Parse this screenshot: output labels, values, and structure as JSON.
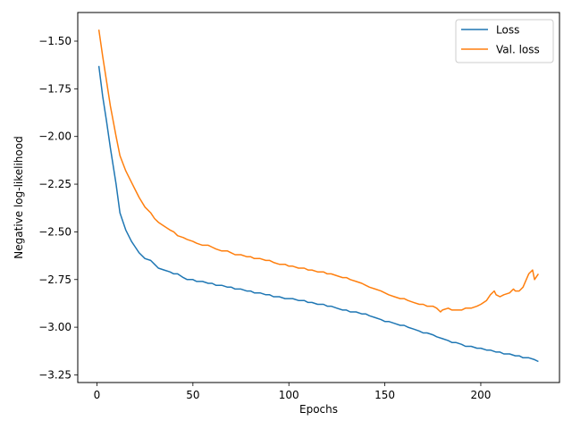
{
  "chart_data": {
    "type": "line",
    "title": "",
    "xlabel": "Epochs",
    "ylabel": "Negative log-likelihood",
    "xlim": [
      -10,
      241
    ],
    "ylim": [
      -3.29,
      -1.35
    ],
    "xticks": [
      0,
      50,
      100,
      150,
      200
    ],
    "yticks": [
      -1.5,
      -1.75,
      -2.0,
      -2.25,
      -2.5,
      -2.75,
      -3.0,
      -3.25
    ],
    "xtick_labels": [
      "0",
      "50",
      "100",
      "150",
      "200"
    ],
    "ytick_labels": [
      "−1.50",
      "−1.75",
      "−2.00",
      "−2.25",
      "−2.50",
      "−2.75",
      "−3.00",
      "−3.25"
    ],
    "grid": false,
    "legend_position": "top-right",
    "series": [
      {
        "name": "Loss",
        "color": "#1f77b4",
        "x": [
          1,
          3,
          5,
          7,
          10,
          12,
          15,
          18,
          20,
          22,
          25,
          28,
          30,
          32,
          35,
          38,
          40,
          42,
          45,
          47,
          50,
          52,
          55,
          58,
          60,
          62,
          65,
          68,
          70,
          72,
          75,
          78,
          80,
          82,
          85,
          88,
          90,
          92,
          95,
          98,
          100,
          102,
          105,
          108,
          110,
          112,
          115,
          118,
          120,
          122,
          125,
          128,
          130,
          132,
          135,
          138,
          140,
          142,
          145,
          148,
          150,
          152,
          155,
          158,
          160,
          162,
          165,
          168,
          170,
          172,
          175,
          177,
          180,
          183,
          185,
          187,
          190,
          192,
          195,
          198,
          200,
          203,
          205,
          208,
          210,
          212,
          215,
          218,
          220,
          222,
          225,
          228,
          230
        ],
        "values": [
          -1.63,
          -1.79,
          -1.92,
          -2.06,
          -2.25,
          -2.4,
          -2.49,
          -2.55,
          -2.58,
          -2.61,
          -2.64,
          -2.65,
          -2.67,
          -2.69,
          -2.7,
          -2.71,
          -2.72,
          -2.72,
          -2.74,
          -2.75,
          -2.75,
          -2.76,
          -2.76,
          -2.77,
          -2.77,
          -2.78,
          -2.78,
          -2.79,
          -2.79,
          -2.8,
          -2.8,
          -2.81,
          -2.81,
          -2.82,
          -2.82,
          -2.83,
          -2.83,
          -2.84,
          -2.84,
          -2.85,
          -2.85,
          -2.85,
          -2.86,
          -2.86,
          -2.87,
          -2.87,
          -2.88,
          -2.88,
          -2.89,
          -2.89,
          -2.9,
          -2.91,
          -2.91,
          -2.92,
          -2.92,
          -2.93,
          -2.93,
          -2.94,
          -2.95,
          -2.96,
          -2.97,
          -2.97,
          -2.98,
          -2.99,
          -2.99,
          -3.0,
          -3.01,
          -3.02,
          -3.03,
          -3.03,
          -3.04,
          -3.05,
          -3.06,
          -3.07,
          -3.08,
          -3.08,
          -3.09,
          -3.1,
          -3.1,
          -3.11,
          -3.11,
          -3.12,
          -3.12,
          -3.13,
          -3.13,
          -3.14,
          -3.14,
          -3.15,
          -3.15,
          -3.16,
          -3.16,
          -3.17,
          -3.18
        ]
      },
      {
        "name": "Val. loss",
        "color": "#ff7f0e",
        "x": [
          1,
          3,
          5,
          7,
          10,
          12,
          15,
          18,
          20,
          22,
          25,
          28,
          30,
          32,
          35,
          38,
          40,
          42,
          45,
          47,
          50,
          52,
          55,
          58,
          60,
          62,
          65,
          68,
          70,
          72,
          75,
          78,
          80,
          82,
          85,
          88,
          90,
          92,
          95,
          98,
          100,
          102,
          105,
          108,
          110,
          112,
          115,
          118,
          120,
          122,
          125,
          128,
          130,
          132,
          135,
          138,
          140,
          142,
          145,
          148,
          150,
          152,
          155,
          158,
          160,
          162,
          165,
          168,
          170,
          172,
          175,
          177,
          179,
          180,
          183,
          185,
          187,
          190,
          192,
          195,
          198,
          200,
          203,
          205,
          207,
          208,
          210,
          212,
          215,
          217,
          218,
          220,
          222,
          225,
          227,
          228,
          230
        ],
        "values": [
          -1.44,
          -1.58,
          -1.71,
          -1.84,
          -2.0,
          -2.1,
          -2.18,
          -2.24,
          -2.28,
          -2.32,
          -2.37,
          -2.4,
          -2.43,
          -2.45,
          -2.47,
          -2.49,
          -2.5,
          -2.52,
          -2.53,
          -2.54,
          -2.55,
          -2.56,
          -2.57,
          -2.57,
          -2.58,
          -2.59,
          -2.6,
          -2.6,
          -2.61,
          -2.62,
          -2.62,
          -2.63,
          -2.63,
          -2.64,
          -2.64,
          -2.65,
          -2.65,
          -2.66,
          -2.67,
          -2.67,
          -2.68,
          -2.68,
          -2.69,
          -2.69,
          -2.7,
          -2.7,
          -2.71,
          -2.71,
          -2.72,
          -2.72,
          -2.73,
          -2.74,
          -2.74,
          -2.75,
          -2.76,
          -2.77,
          -2.78,
          -2.79,
          -2.8,
          -2.81,
          -2.82,
          -2.83,
          -2.84,
          -2.85,
          -2.85,
          -2.86,
          -2.87,
          -2.88,
          -2.88,
          -2.89,
          -2.89,
          -2.9,
          -2.92,
          -2.91,
          -2.9,
          -2.91,
          -2.91,
          -2.91,
          -2.9,
          -2.9,
          -2.89,
          -2.88,
          -2.86,
          -2.83,
          -2.81,
          -2.83,
          -2.84,
          -2.83,
          -2.82,
          -2.8,
          -2.81,
          -2.81,
          -2.79,
          -2.72,
          -2.7,
          -2.75,
          -2.72
        ]
      }
    ]
  }
}
